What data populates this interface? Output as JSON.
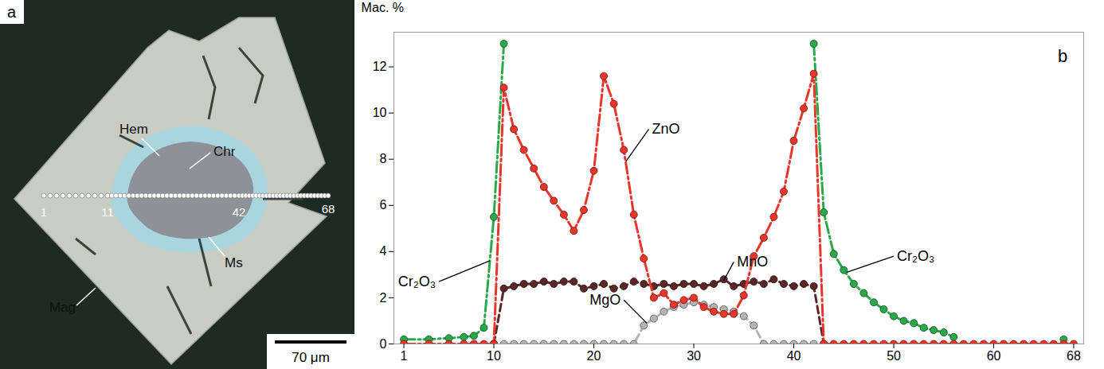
{
  "image_panel": {
    "panel_label": "a",
    "labels": [
      "Hem",
      "Chr",
      "Mag",
      "Ms"
    ],
    "profile_labels": [
      "1",
      "11",
      "42",
      "68"
    ],
    "scale_bar": "70 μm"
  },
  "chart_data": {
    "type": "line",
    "panel_label": "b",
    "y_label": "Мас. %",
    "x": [
      1,
      3.5,
      5.5,
      7,
      8,
      9,
      10,
      11,
      12,
      13,
      14,
      15,
      16,
      17,
      18,
      19,
      20,
      21,
      22,
      23,
      24,
      25,
      26,
      27,
      28,
      29,
      30,
      31,
      32,
      33,
      34,
      35,
      36,
      37,
      38,
      39,
      40,
      41,
      42,
      43,
      44,
      45,
      46,
      47,
      48,
      49,
      50,
      51,
      52,
      53,
      54,
      55,
      56,
      57,
      58,
      59,
      60,
      61,
      62,
      63,
      64,
      65,
      66,
      67,
      68
    ],
    "series": [
      {
        "name": "ZnO",
        "color": "#e8362b",
        "marker": "circle",
        "line_style": "dashdot",
        "values": [
          0,
          0,
          0,
          0,
          0,
          0,
          0,
          11.1,
          9.3,
          8.4,
          7.6,
          6.8,
          6.2,
          5.6,
          4.9,
          5.8,
          7.5,
          11.6,
          10.4,
          8.4,
          5.6,
          3.7,
          2.0,
          2.2,
          1.7,
          1.9,
          2.0,
          1.6,
          1.4,
          1.3,
          1.3,
          2.1,
          3.8,
          4.6,
          5.5,
          6.6,
          8.8,
          10.2,
          11.7,
          0,
          0,
          0,
          0,
          0,
          0,
          0,
          0,
          0,
          0,
          0,
          0,
          0,
          0,
          0,
          0,
          0,
          0,
          0,
          0,
          0,
          0,
          0,
          0,
          0,
          0
        ]
      },
      {
        "name": "MnO",
        "color": "#5a2626",
        "marker": "circle",
        "line_style": "dashed",
        "values": [
          null,
          null,
          null,
          null,
          null,
          null,
          0,
          2.4,
          2.5,
          2.6,
          2.6,
          2.7,
          2.6,
          2.7,
          2.7,
          2.4,
          2.5,
          2.6,
          2.4,
          2.5,
          2.7,
          2.6,
          2.5,
          2.6,
          2.5,
          2.6,
          2.6,
          2.5,
          2.6,
          2.8,
          2.5,
          2.6,
          2.7,
          2.6,
          2.8,
          2.6,
          2.5,
          2.6,
          2.5,
          0,
          null,
          null,
          null,
          null,
          null,
          null,
          null,
          null,
          null,
          null,
          null,
          null,
          null,
          null,
          null,
          null,
          null,
          null,
          null,
          null,
          null,
          null,
          null,
          null,
          null
        ]
      },
      {
        "name": "MgO",
        "color": "#b4b4b4",
        "marker": "circle",
        "line_style": "dashed",
        "values": [
          null,
          null,
          null,
          null,
          null,
          null,
          null,
          0,
          0,
          0,
          0,
          0,
          0,
          0,
          0,
          0,
          0,
          0,
          0,
          0,
          0,
          0.8,
          1.1,
          1.4,
          1.6,
          1.7,
          1.8,
          1.7,
          1.6,
          1.5,
          1.4,
          1.2,
          0.8,
          0,
          0,
          0,
          0,
          0,
          0,
          null,
          null,
          null,
          null,
          null,
          null,
          null,
          null,
          null,
          null,
          null,
          null,
          null,
          null,
          null,
          null,
          null,
          null,
          null,
          null,
          null,
          null,
          null,
          null,
          null,
          null
        ]
      },
      {
        "name": "Cr₂O₃",
        "color": "#2aa84a",
        "marker": "circle",
        "line_style": "dashdot",
        "values": [
          0.2,
          0.2,
          0.25,
          0.3,
          0.35,
          0.7,
          5.5,
          13,
          null,
          null,
          null,
          null,
          null,
          null,
          null,
          null,
          null,
          null,
          null,
          null,
          null,
          null,
          null,
          null,
          null,
          null,
          null,
          null,
          null,
          null,
          null,
          null,
          null,
          null,
          null,
          null,
          null,
          null,
          13,
          5.7,
          3.9,
          3.2,
          2.6,
          2.2,
          1.8,
          1.5,
          1.2,
          1.0,
          0.9,
          0.7,
          0.6,
          0.5,
          0.3,
          null,
          null,
          null,
          null,
          null,
          null,
          null,
          null,
          null,
          null,
          0.2,
          null
        ]
      }
    ],
    "annotations": [
      {
        "text": "ZnO",
        "x": 25.5,
        "y": 9.3,
        "target": [
          23.2,
          7.9
        ]
      },
      {
        "text": "MnO",
        "x": 34,
        "y": 3.55,
        "target": [
          33,
          2.75
        ]
      },
      {
        "text": "MgO",
        "x": 23,
        "y": 1.9,
        "target": [
          25.3,
          0.9
        ]
      },
      {
        "text": "Cr₂O₃",
        "x": 4.5,
        "y": 2.7,
        "target": [
          9.6,
          3.6
        ]
      },
      {
        "text": "Cr₂O₃",
        "x": 50,
        "y": 3.8,
        "target": [
          45.3,
          3.1
        ]
      }
    ],
    "xlim": [
      0,
      69
    ],
    "xticks": [
      1,
      10,
      20,
      30,
      40,
      50,
      60,
      68
    ],
    "ylim": [
      0,
      13.5
    ],
    "yticks": [
      0,
      2,
      4,
      6,
      8,
      10,
      12
    ],
    "grid": false
  }
}
